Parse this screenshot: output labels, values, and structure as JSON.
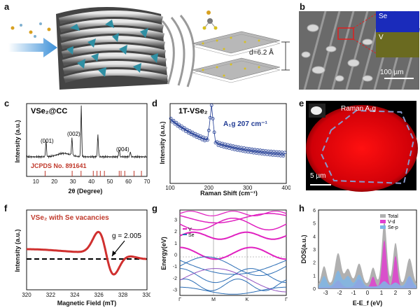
{
  "figure": {
    "panel_letters": [
      "a",
      "b",
      "c",
      "d",
      "e",
      "f",
      "g",
      "h"
    ]
  },
  "panel_a": {
    "d_label": "d=6.2 Å"
  },
  "panel_b": {
    "inset_se": "Se",
    "inset_v": "V",
    "scale_bar": "100 µm"
  },
  "panel_c": {
    "title": "VSe₂@CC",
    "peak_labels": [
      "(001)",
      "(002)",
      "(004)"
    ],
    "reference": "JCPDS No. 891641",
    "xlabel": "2θ (Degree)",
    "ylabel": "Intensity (a.u.)",
    "xticks": [
      "10",
      "20",
      "30",
      "40",
      "50",
      "60",
      "70"
    ],
    "colors": {
      "pattern": "#111111",
      "reference": "#c0392b"
    }
  },
  "panel_d": {
    "title": "1T-VSe₂",
    "peak_label": "A₁g 207 cm⁻¹",
    "xlabel": "Raman Shift (cm⁻¹)",
    "ylabel": "Intensity (a.u.)",
    "xticks": [
      "100",
      "200",
      "300",
      "400"
    ],
    "colors": {
      "data": "#1f3a93"
    }
  },
  "panel_e": {
    "label": "Raman A₁g",
    "scale_bar": "5 µm",
    "colors": {
      "map": "#e8000a",
      "outline": "#8899cc"
    }
  },
  "panel_f": {
    "title": "VSe₂ with Se vacancies",
    "g_label": "g = 2.005",
    "xlabel": "Magnetic Field (mT)",
    "ylabel": "Intensity (a.u.)",
    "xticks": [
      "320",
      "322",
      "324",
      "326",
      "328",
      "330"
    ],
    "colors": {
      "curve": "#d0302f",
      "baseline": "#000000"
    }
  },
  "panel_g": {
    "ylabel": "Energy(eV)",
    "legend": [
      "V",
      "Se"
    ],
    "yticks": [
      "3",
      "2",
      "1",
      "0",
      "-1",
      "-2",
      "-3"
    ],
    "kpoints": [
      "Γ",
      "M",
      "K",
      "Γ"
    ],
    "colors": {
      "v_band": "#e020c0",
      "se_band": "#2a6db5"
    }
  },
  "panel_h": {
    "ylabel": "DOS(a.u.)",
    "xlabel": "E-E_f (eV)",
    "legend": [
      "Total",
      "V-d",
      "Se-p"
    ],
    "xticks": [
      "-3",
      "-2",
      "-1",
      "0",
      "1",
      "2",
      "3"
    ],
    "yticks": [
      "0",
      "1",
      "2",
      "3",
      "4",
      "5",
      "6"
    ],
    "colors": {
      "total": "#b0b0b0",
      "vd": "#e040d0",
      "sep": "#7fb6e6"
    }
  },
  "chart_data": [
    {
      "type": "line",
      "panel": "c",
      "title": "VSe₂@CC",
      "xlabel": "2θ (Degree)",
      "ylabel": "Intensity (a.u.)",
      "xlim": [
        5,
        70
      ],
      "peaks": [
        {
          "x": 15.5,
          "label": "(001)",
          "rel_intensity": 0.32
        },
        {
          "x": 29.5,
          "label": "(002)",
          "rel_intensity": 0.35
        },
        {
          "x": 34.5,
          "rel_intensity": 1.0
        },
        {
          "x": 43.5,
          "rel_intensity": 0.45
        },
        {
          "x": 55.0,
          "label": "(004)",
          "rel_intensity": 0.15
        },
        {
          "x": 61.0,
          "rel_intensity": 0.1
        }
      ],
      "reference_lines": [
        15,
        29.6,
        34.4,
        41,
        43,
        44.8,
        47,
        55,
        56,
        58,
        63,
        67
      ]
    },
    {
      "type": "scatter",
      "panel": "d",
      "title": "1T-VSe₂",
      "xlabel": "Raman Shift (cm⁻¹)",
      "ylabel": "Intensity (a.u.)",
      "xlim": [
        100,
        400
      ],
      "peak": {
        "x": 207,
        "label": "A₁g 207 cm⁻¹"
      }
    },
    {
      "type": "line",
      "panel": "f",
      "title": "VSe₂ with Se vacancies",
      "xlabel": "Magnetic Field (mT)",
      "ylabel": "Intensity (a.u.)",
      "xlim": [
        320,
        330
      ],
      "annotation": {
        "x": 327.0,
        "label": "g = 2.005"
      }
    },
    {
      "type": "line",
      "panel": "g",
      "ylabel": "Energy(eV)",
      "ylim": [
        -3.5,
        3.8
      ],
      "kpoints": [
        "Γ",
        "M",
        "K",
        "Γ"
      ],
      "series": [
        {
          "name": "V"
        },
        {
          "name": "Se"
        }
      ]
    },
    {
      "type": "area",
      "panel": "h",
      "xlabel": "E-E_f (eV)",
      "ylabel": "DOS(a.u.)",
      "xlim": [
        -3.5,
        3.5
      ],
      "ylim": [
        0,
        6
      ],
      "series": [
        {
          "name": "Total"
        },
        {
          "name": "V-d"
        },
        {
          "name": "Se-p"
        }
      ]
    }
  ]
}
